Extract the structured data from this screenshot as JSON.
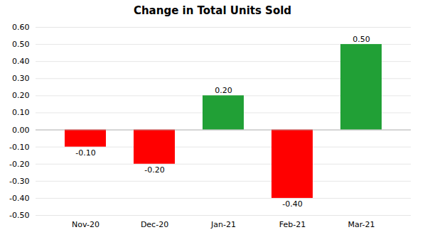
{
  "chart_data": {
    "type": "bar",
    "title": "Change in Total Units Sold",
    "categories": [
      "Nov-20",
      "Dec-20",
      "Jan-21",
      "Feb-21",
      "Mar-21"
    ],
    "values": [
      -0.1,
      -0.2,
      0.2,
      -0.4,
      0.5
    ],
    "value_labels": [
      "-0.10",
      "-0.20",
      "0.20",
      "-0.40",
      "0.50"
    ],
    "colors": [
      "#FF0000",
      "#FF0000",
      "#21A036",
      "#FF0000",
      "#21A036"
    ],
    "ylim": [
      -0.5,
      0.6
    ],
    "yticks": [
      {
        "value": -0.5,
        "label": "-0.50"
      },
      {
        "value": -0.4,
        "label": "-0.40"
      },
      {
        "value": -0.3,
        "label": "-0.30"
      },
      {
        "value": -0.2,
        "label": "-0.20"
      },
      {
        "value": -0.1,
        "label": "-0.10"
      },
      {
        "value": 0,
        "label": "0.00"
      },
      {
        "value": 0.1,
        "label": "0.10"
      },
      {
        "value": 0.2,
        "label": "0.20"
      },
      {
        "value": 0.3,
        "label": "0.30"
      },
      {
        "value": 0.4,
        "label": "0.40"
      },
      {
        "value": 0.5,
        "label": "0.50"
      },
      {
        "value": 0.6,
        "label": "0.60"
      }
    ],
    "grid": true,
    "data_labels": true
  }
}
